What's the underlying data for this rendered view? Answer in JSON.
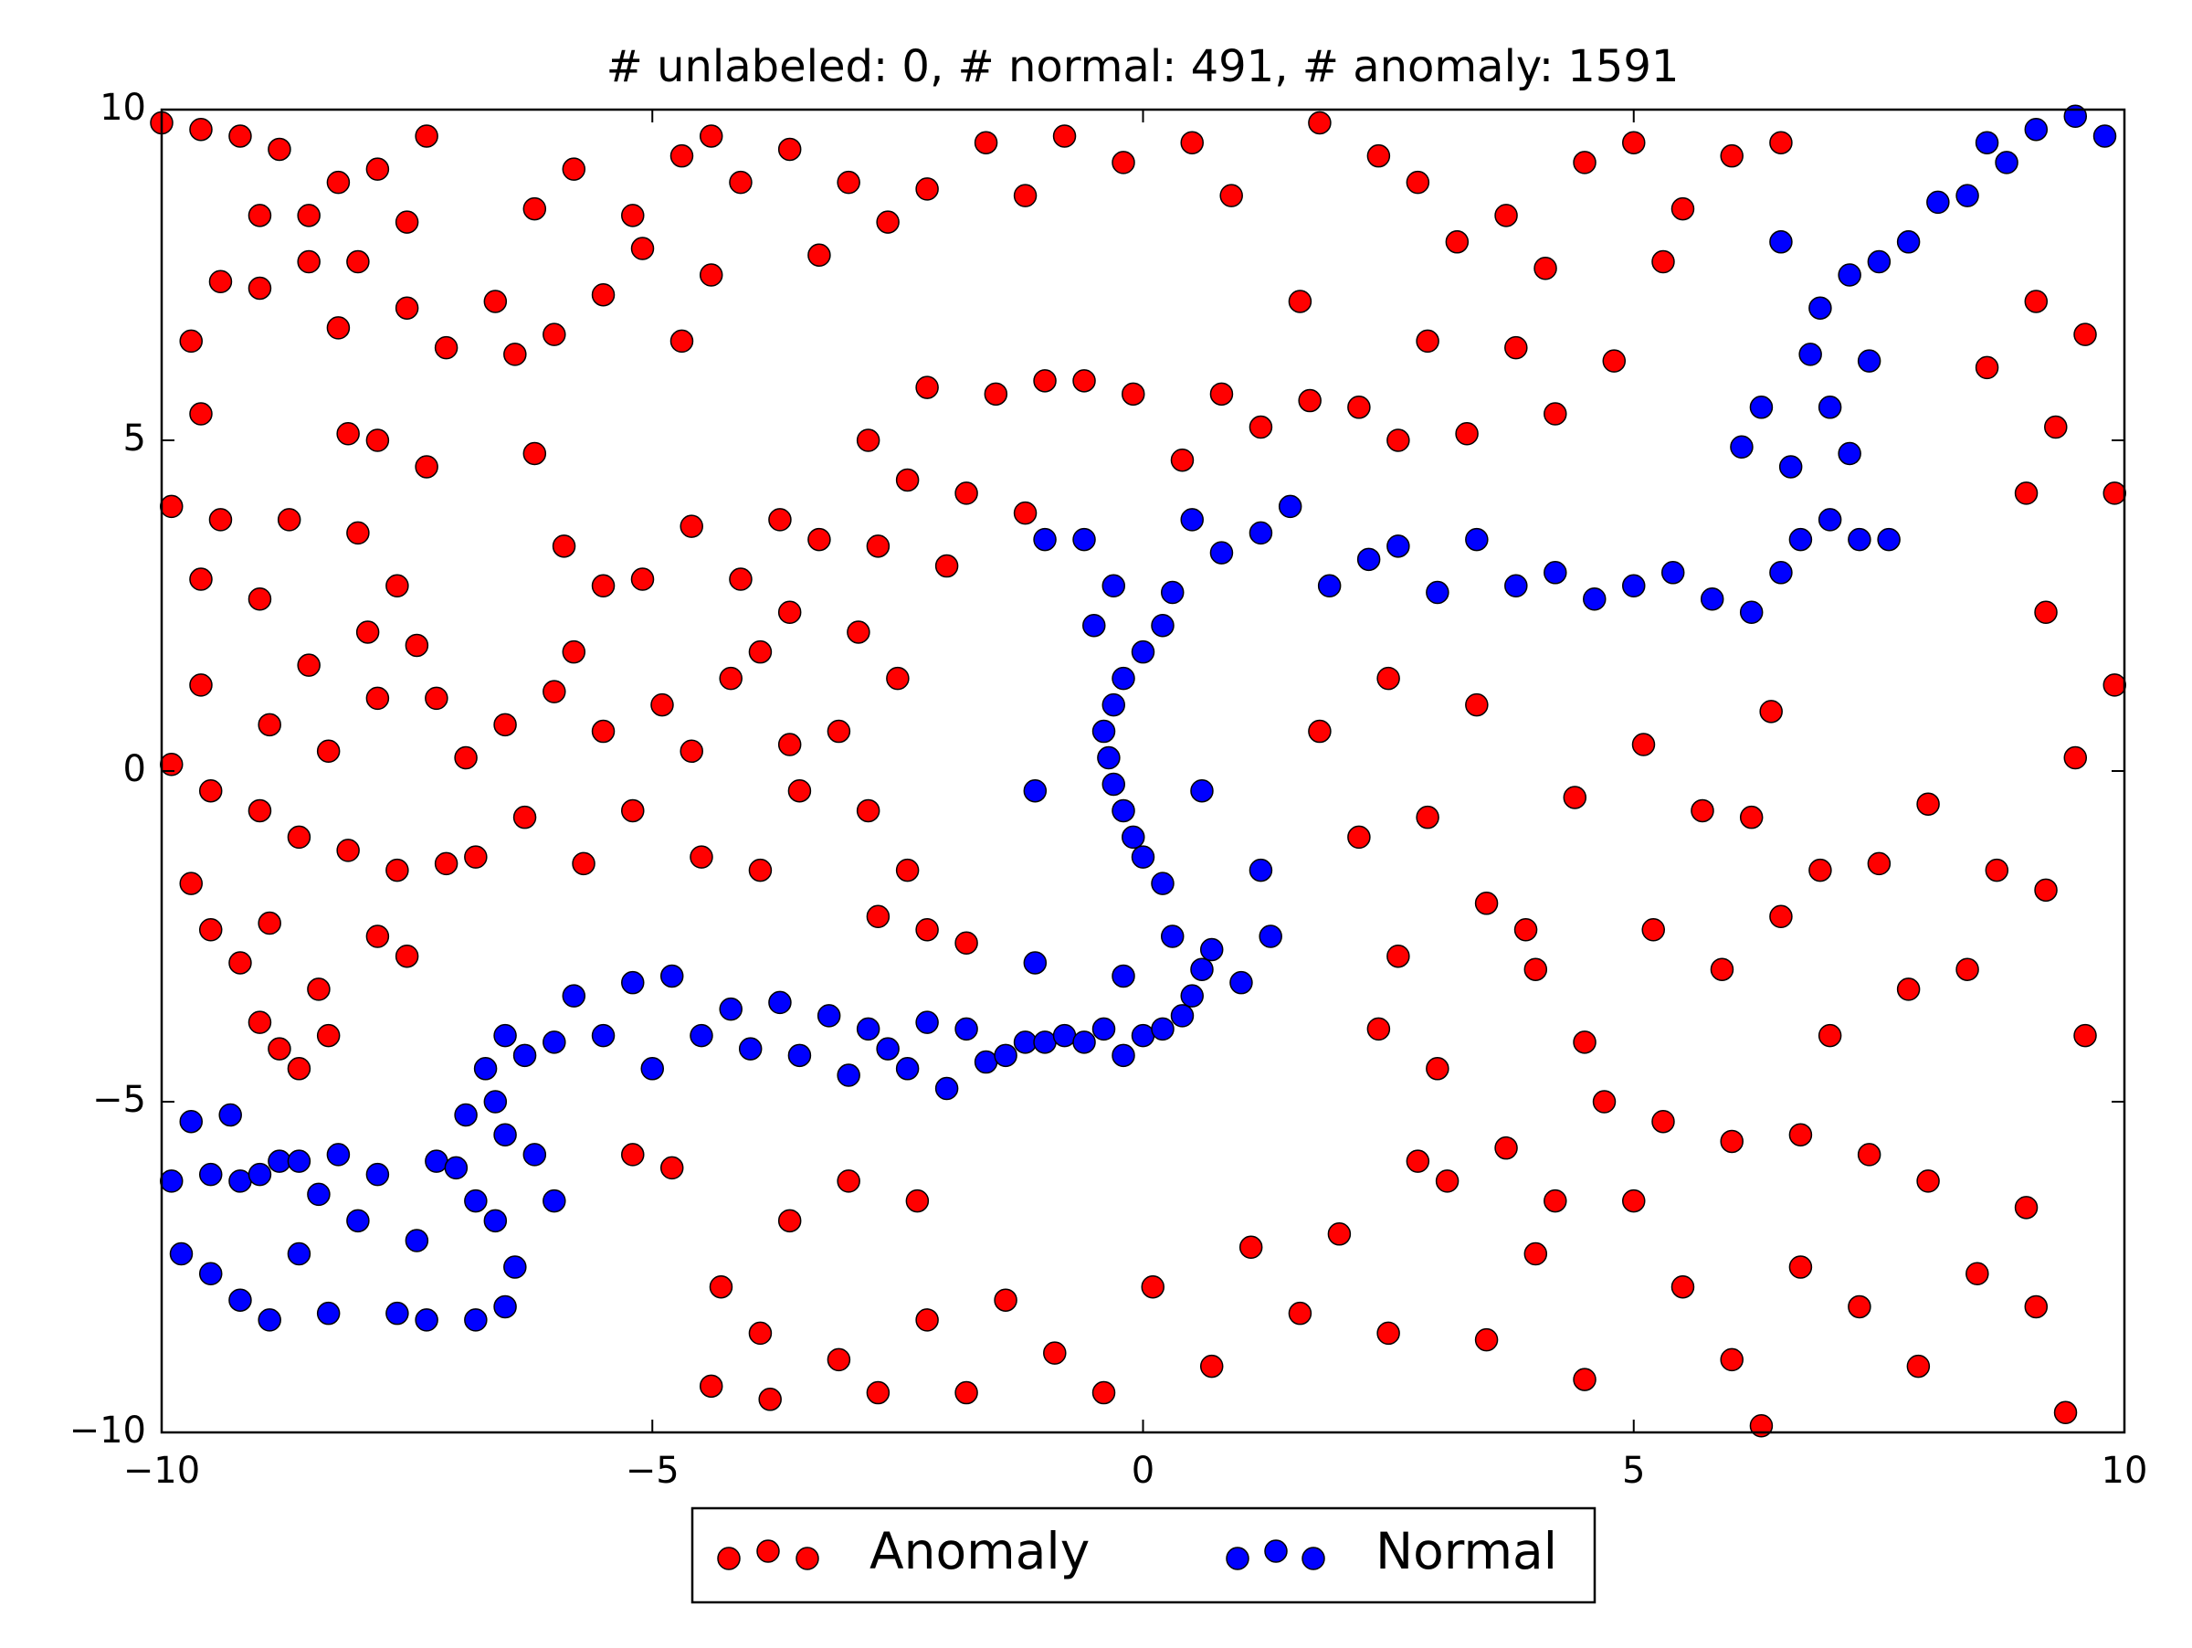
{
  "chart_data": {
    "type": "scatter",
    "title": "# unlabeled: 0, # normal: 491, # anomaly: 1591",
    "xlim": [
      -10,
      10
    ],
    "ylim": [
      -10,
      10
    ],
    "xticks": [
      {
        "value": -10,
        "label": "−10"
      },
      {
        "value": -5,
        "label": "−5"
      },
      0,
      5,
      10
    ],
    "yticks": [
      {
        "value": -10,
        "label": "−10"
      },
      {
        "value": -5,
        "label": "−5"
      },
      0,
      5,
      10
    ],
    "grid": false,
    "legend": "lower center",
    "series": [
      {
        "name": "Anomaly",
        "color": "#ff0000",
        "x": [
          -10,
          -9.6,
          -9.2,
          -8.8,
          -9,
          -8.5,
          -8.2,
          -7.8,
          -7.3,
          -7.5,
          -9.4,
          -9,
          -8.5,
          -8,
          -7.5,
          -7.1,
          -9.7,
          -9.6,
          -8.2,
          -8.1,
          -7.8,
          -7.3,
          -9.9,
          -9.4,
          -8.7,
          -8,
          -7.6,
          -9.6,
          -9,
          -8.5,
          -7.9,
          -7.4,
          -9.6,
          -8.9,
          -8.3,
          -7.8,
          -7.2,
          -9.9,
          -9.5,
          -9,
          -8.6,
          -8.1,
          -7.6,
          -7.1,
          -6.8,
          -9.7,
          -9.5,
          -9.2,
          -8.9,
          -8.4,
          -7.8,
          -7.5,
          -9,
          -8.8,
          -8.6,
          -8.3,
          -6.9,
          -6.5,
          -6.3,
          -6,
          -5.8,
          -5.5,
          -5.2,
          -4.9,
          -4.6,
          -4.2,
          -3.9,
          -3.6,
          -5.9,
          -5.5,
          -5.1,
          -4.6,
          -4.1,
          -3.7,
          -6.2,
          -6.4,
          -6,
          -5.5,
          -5.1,
          -4.7,
          -4.4,
          -6.6,
          -6.2,
          -5.8,
          -5.2,
          -4.7,
          -4.4,
          -4.1,
          -3.6,
          -3.3,
          -3,
          -2.6,
          -2.2,
          -1.6,
          -1.2,
          -0.8,
          -0.2,
          0.5,
          0.9,
          1.6,
          1.8,
          2.4,
          2.8,
          3.2,
          3.7,
          4.1,
          4.5,
          5,
          5.5,
          6,
          6.5,
          5.3,
          4.8,
          4.2,
          3.8,
          3.3,
          2.9,
          2.6,
          2.2,
          1.7,
          1.2,
          0.8,
          0.4,
          -0.1,
          -0.6,
          -1,
          -1.5,
          -2.2,
          -2.8,
          -2.4,
          -1.8,
          -1.2,
          -2,
          -2.7,
          -3.3,
          -3.6,
          -2.9,
          -2.5,
          -3.1,
          -3.5,
          -2.8,
          -4.5,
          -5.7,
          -3.9,
          -2.4,
          -2.7,
          -2.2,
          -1.8,
          -2.3,
          -3,
          -3.6,
          -4.3,
          -4.8,
          -5.2,
          -3.9,
          -4.4,
          -3.8,
          -3.1,
          -2.7,
          -2.2,
          -1.8,
          -1.4,
          -0.9,
          -0.4,
          0.1,
          0.7,
          1.1,
          1.6,
          2,
          2.5,
          3.1,
          3.5,
          4,
          4.5,
          5,
          5.5,
          6,
          6.3,
          6.7,
          7.3,
          7.9,
          8.5,
          9.1,
          9.4,
          9.6,
          9,
          8.4,
          7.8,
          7,
          6.5,
          5.9,
          5.2,
          4.5,
          4,
          3.5,
          3,
          2.6,
          2.4,
          2.8,
          3.7,
          4.2,
          4.7,
          5.3,
          6,
          6.7,
          7.4,
          8,
          2.2,
          1.8,
          2.5,
          3.4,
          4.4,
          5.1,
          5.7,
          6.4,
          6.9,
          7.5,
          8,
          8.7,
          9.2,
          9.5,
          9.9,
          9.2,
          9,
          9.3,
          9.6,
          9.1,
          9.9,
          8.6,
          2.9,
          3.9,
          6.2
        ],
        "y": [
          9.8,
          9.7,
          9.6,
          9.4,
          8.4,
          8.4,
          8.9,
          9.1,
          9.6,
          8.3,
          7.4,
          7.3,
          7.7,
          7.7,
          7,
          6.4,
          6.5,
          5.4,
          6.7,
          5.1,
          5,
          4.6,
          4,
          3.8,
          3.8,
          3.6,
          2.8,
          2.9,
          2.6,
          1.6,
          2.1,
          1.9,
          1.3,
          0.7,
          0.3,
          1.1,
          1.1,
          0.1,
          -0.3,
          -0.6,
          -1,
          -1.2,
          -1.5,
          -1.4,
          -1.3,
          -1.7,
          -2.4,
          -2.9,
          -2.3,
          -3.3,
          -2.5,
          -2.8,
          -3.8,
          -4.2,
          -4.5,
          -4,
          0.2,
          0.7,
          -0.7,
          1.2,
          1.8,
          0.6,
          -0.6,
          1,
          0.3,
          1.4,
          1.8,
          0.4,
          3.4,
          2.8,
          2.9,
          3.7,
          2.9,
          3.8,
          4.8,
          6.3,
          6.6,
          7.2,
          7.9,
          6.5,
          7.5,
          7.1,
          8.5,
          9.1,
          8.4,
          9.3,
          9.6,
          8.9,
          9.4,
          7.8,
          8.9,
          8.3,
          8.8,
          9.5,
          8.7,
          9.6,
          9.2,
          9.5,
          8.7,
          7.1,
          9.8,
          9.3,
          8.9,
          8,
          8.4,
          7.6,
          9.2,
          9.5,
          8.5,
          9.3,
          9.5,
          7.7,
          6.2,
          5.4,
          6.4,
          5.1,
          6.5,
          5,
          5.5,
          5.6,
          5.2,
          5.7,
          4.7,
          5.7,
          5.9,
          5.9,
          5.7,
          5.8,
          5,
          4.4,
          4.2,
          3.9,
          3.1,
          3.4,
          3.5,
          2.4,
          2.1,
          1.4,
          0.6,
          -0.3,
          -0.6,
          -1.3,
          -1.4,
          -1.5,
          -1.5,
          -2.2,
          -2.4,
          -2.6,
          -6.5,
          -6.2,
          -6.8,
          -7.8,
          -6,
          -5.8,
          -8.5,
          -9.3,
          -9.5,
          -8.9,
          -9.4,
          -8.3,
          -9.4,
          -8,
          -8.8,
          -9.4,
          -7.8,
          -9,
          -7.2,
          -8.2,
          -7,
          -8.5,
          -6.2,
          -8.6,
          -7.3,
          -9.2,
          -6.5,
          -7.8,
          -8.9,
          -9.9,
          -7.5,
          -8.1,
          -9,
          -7.6,
          -8.1,
          -9.7,
          -4,
          -6.6,
          -3,
          -3.3,
          -4,
          -2.2,
          -3,
          -2.4,
          -4.1,
          -3,
          -2,
          -4.5,
          -2.8,
          -3.9,
          -5.9,
          -5.7,
          -6.5,
          -5,
          -5.3,
          -5.6,
          -5.5,
          -5.8,
          -6.2,
          -1,
          0.6,
          1.4,
          1,
          -0.4,
          0.4,
          -0.6,
          0.9,
          -1.5,
          -1.4,
          -0.5,
          -1.5,
          -1.8,
          0.2,
          1.3,
          2.4,
          4.2,
          5.2,
          6.6,
          7.1,
          4.2,
          6.1,
          -0.7,
          -2.4,
          -0.7
        ]
      },
      {
        "name": "Normal",
        "color": "#0000ff",
        "x": [
          -9.9,
          -9.7,
          -9.5,
          -9.3,
          -9.2,
          -9,
          -8.8,
          -8.6,
          -8.4,
          -8.2,
          -8,
          -7.8,
          -7.6,
          -7.4,
          -7.2,
          -7,
          -6.8,
          -6.6,
          -6.5,
          -6.4,
          -6.2,
          -6,
          -9.8,
          -9.5,
          -9.2,
          -8.9,
          -8.6,
          -8.3,
          -7.3,
          -6.8,
          -6.5,
          -6.9,
          -6.6,
          -6.7,
          -6.5,
          -6.3,
          -6,
          -5.8,
          -5.5,
          -5.2,
          -5,
          -4.8,
          -4.5,
          -4.2,
          -4,
          -3.7,
          -3.5,
          -3.2,
          -3,
          -2.8,
          -2.6,
          -2.4,
          -2.2,
          -2,
          -1.8,
          -1.6,
          -1.4,
          -1.2,
          -1,
          -0.8,
          -0.6,
          -0.4,
          -0.2,
          0,
          0.2,
          0.4,
          0.5,
          0.6,
          0.7,
          0.3,
          0.2,
          0,
          -0.1,
          -0.2,
          -0.3,
          -0.35,
          -0.4,
          -0.3,
          -0.2,
          0,
          0.2,
          -0.5,
          -0.3,
          0.3,
          0.5,
          -1,
          -0.6,
          0.8,
          1.2,
          1.5,
          1.9,
          2.3,
          2.6,
          3,
          3.4,
          3.8,
          4.2,
          4.6,
          5,
          5.4,
          5.8,
          6.2,
          6.5,
          6.7,
          7,
          7.3,
          7.6,
          6.1,
          6.3,
          6.6,
          6.8,
          7,
          7.2,
          7.4,
          6.9,
          7.2,
          7.5,
          7.8,
          8.1,
          8.4,
          8.8,
          9.1,
          9.5,
          9.8,
          8.6,
          6.5,
          1.2,
          1.3,
          -1.1,
          0.6,
          -0.2,
          1,
          -1.1
        ],
        "y": [
          -6.2,
          -5.3,
          -6.1,
          -5.2,
          -6.2,
          -6.1,
          -5.9,
          -5.9,
          -6.4,
          -5.8,
          -6.8,
          -6.1,
          -8.2,
          -7.1,
          -5.9,
          -6,
          -6.5,
          -6.8,
          -5.5,
          -7.5,
          -5.8,
          -6.5,
          -7.3,
          -7.6,
          -8,
          -8.3,
          -7.3,
          -8.2,
          -8.3,
          -8.3,
          -8.1,
          -5.2,
          -5,
          -4.5,
          -4,
          -4.3,
          -4.1,
          -3.4,
          -4,
          -3.2,
          -4.5,
          -3.1,
          -4,
          -3.6,
          -4.2,
          -3.5,
          -4.3,
          -3.7,
          -4.6,
          -3.9,
          -4.2,
          -4.5,
          -3.8,
          -4.8,
          -3.9,
          -4.4,
          -4.3,
          -4.1,
          -4.1,
          -4,
          -4.1,
          -3.9,
          -4.3,
          -4,
          -3.9,
          -3.7,
          -3.4,
          -3,
          -2.7,
          -2.5,
          -1.7,
          -1.3,
          -1,
          -0.6,
          -0.2,
          0.2,
          0.6,
          1,
          1.4,
          1.8,
          2.2,
          2.2,
          2.8,
          2.7,
          3.8,
          3.5,
          3.5,
          3.3,
          3.6,
          4,
          2.8,
          3.2,
          3.4,
          2.7,
          3.5,
          2.8,
          3,
          2.6,
          2.8,
          3,
          2.6,
          2.4,
          3,
          3.5,
          3.8,
          3.5,
          3.5,
          4.9,
          5.5,
          4.6,
          6.3,
          5.5,
          4.8,
          6.2,
          7,
          7.5,
          7.7,
          8,
          8.6,
          8.7,
          9.2,
          9.7,
          9.9,
          9.6,
          9.5,
          8,
          -1.5,
          -2.5,
          -0.3,
          -0.3,
          -3.1,
          -3.2,
          -2.9
        ]
      }
    ]
  }
}
